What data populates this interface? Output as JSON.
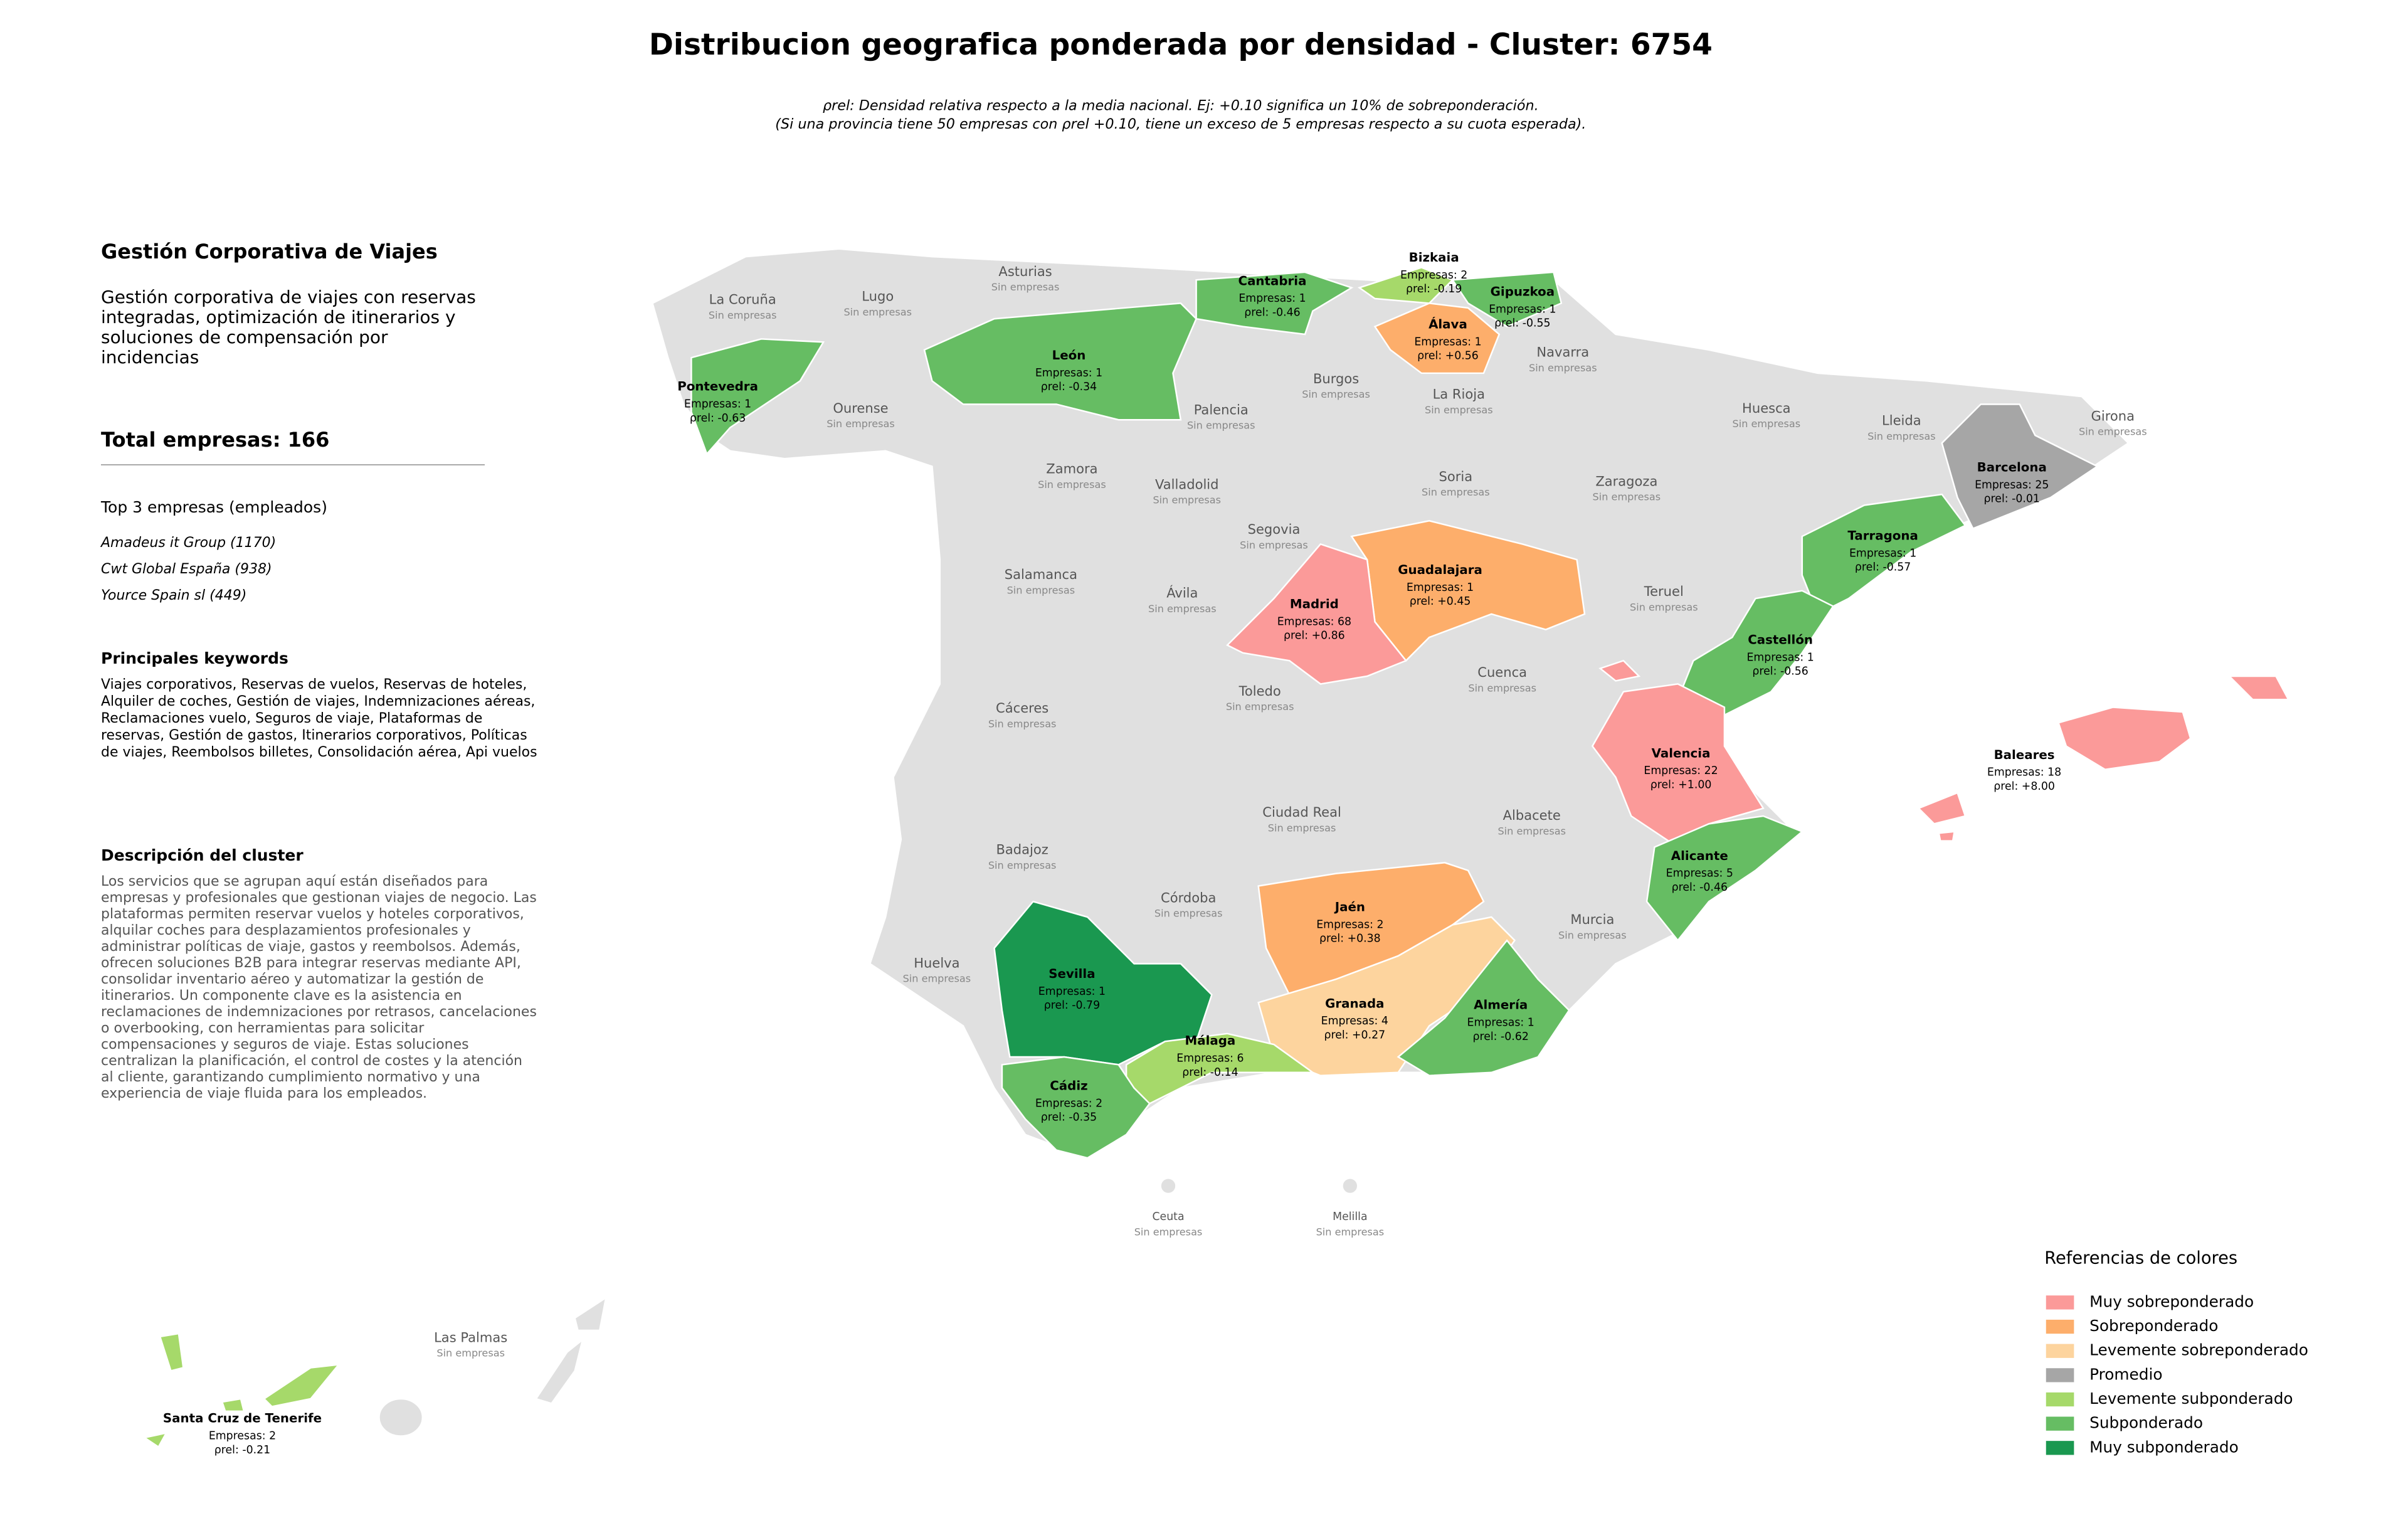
{
  "header": {
    "title": "Distribucion geografica ponderada por densidad - Cluster: 6754",
    "subtitle_lines": [
      "ρrel: Densidad relativa respecto a la media nacional. Ej: +0.10 significa un 10% de sobreponderación.",
      "(Si una provincia tiene 50 empresas con ρrel +0.10, tiene un exceso de 5 empresas respecto a su cuota esperada)."
    ]
  },
  "panel": {
    "heading": "Gestión Corporativa de Viajes",
    "description": "Gestión corporativa de viajes con reservas integradas, optimización de itinerarios y soluciones de compensación por incidencias",
    "total": "Total empresas: 166",
    "top_title": "Top 3 empresas (empleados)",
    "top_companies": [
      "Amadeus it Group (1170)",
      "Cwt Global España (938)",
      "Yource Spain sl (449)"
    ],
    "keywords_title": "Principales keywords",
    "keywords": "Viajes corporativos, Reservas de vuelos, Reservas de hoteles, Alquiler de coches, Gestión de viajes, Indemnizaciones aéreas, Reclamaciones vuelo, Seguros de viaje, Plataformas de reservas, Gestión de gastos, Itinerarios corporativos, Políticas de viajes, Reembolsos billetes, Consolidación aérea, Api vuelos",
    "cluster_title": "Descripción del cluster",
    "cluster_text": "Los servicios que se agrupan aquí están diseñados para empresas y profesionales que gestionan viajes de negocio. Las plataformas permiten reservar vuelos y hoteles corporativos, alquilar coches para desplazamientos profesionales y administrar políticas de viaje, gastos y reembolsos. Además, ofrecen soluciones B2B para integrar reservas mediante API, consolidar inventario aéreo y automatizar la gestión de itinerarios. Un componente clave es la asistencia en reclamaciones de indemnizaciones por retrasos, cancelaciones o overbooking, con herramientas para solicitar compensaciones y seguros de viaje. Estas soluciones centralizan la planificación, el control de costes y la atención al cliente, garantizando cumplimiento normativo y una experiencia de viaje fluida para los empleados."
  },
  "map": {
    "provinces": [
      {
        "name": "Pontevedra",
        "stats": "Empresas: 1",
        "rho": "ρrel: -0.63",
        "category": "Subponderado"
      },
      {
        "name": "León",
        "stats": "Empresas: 1",
        "rho": "ρrel: -0.34",
        "category": "Subponderado"
      },
      {
        "name": "Cantabria",
        "stats": "Empresas: 1",
        "rho": "ρrel: -0.46",
        "category": "Subponderado"
      },
      {
        "name": "Bizkaia",
        "stats": "Empresas: 2",
        "rho": "ρrel: -0.19",
        "category": "Levemente subponderado"
      },
      {
        "name": "Gipuzkoa",
        "stats": "Empresas: 1",
        "rho": "ρrel: -0.55",
        "category": "Subponderado"
      },
      {
        "name": "Álava",
        "stats": "Empresas: 1",
        "rho": "ρrel: +0.56",
        "category": "Sobreponderado"
      },
      {
        "name": "Barcelona",
        "stats": "Empresas: 25",
        "rho": "ρrel: -0.01",
        "category": "Promedio"
      },
      {
        "name": "Tarragona",
        "stats": "Empresas: 1",
        "rho": "ρrel: -0.57",
        "category": "Subponderado"
      },
      {
        "name": "Guadalajara",
        "stats": "Empresas: 1",
        "rho": "ρrel: +0.45",
        "category": "Sobreponderado"
      },
      {
        "name": "Madrid",
        "stats": "Empresas: 68",
        "rho": "ρrel: +0.86",
        "category": "Muy sobreponderado"
      },
      {
        "name": "Castellón",
        "stats": "Empresas: 1",
        "rho": "ρrel: -0.56",
        "category": "Subponderado"
      },
      {
        "name": "Valencia",
        "stats": "Empresas: 22",
        "rho": "ρrel: +1.00",
        "category": "Muy sobreponderado"
      },
      {
        "name": "Baleares",
        "stats": "Empresas: 18",
        "rho": "ρrel: +8.00",
        "category": "Muy sobreponderado"
      },
      {
        "name": "Alicante",
        "stats": "Empresas: 5",
        "rho": "ρrel: -0.46",
        "category": "Subponderado"
      },
      {
        "name": "Jaén",
        "stats": "Empresas: 2",
        "rho": "ρrel: +0.38",
        "category": "Sobreponderado"
      },
      {
        "name": "Sevilla",
        "stats": "Empresas: 1",
        "rho": "ρrel: -0.79",
        "category": "Muy subponderado"
      },
      {
        "name": "Granada",
        "stats": "Empresas: 4",
        "rho": "ρrel: +0.27",
        "category": "Levemente sobreponderado"
      },
      {
        "name": "Almería",
        "stats": "Empresas: 1",
        "rho": "ρrel: -0.62",
        "category": "Subponderado"
      },
      {
        "name": "Málaga",
        "stats": "Empresas: 6",
        "rho": "ρrel: -0.14",
        "category": "Levemente subponderado"
      },
      {
        "name": "Cádiz",
        "stats": "Empresas: 2",
        "rho": "ρrel: -0.35",
        "category": "Subponderado"
      },
      {
        "name": "Santa Cruz de Tenerife",
        "stats": "Empresas: 2",
        "rho": "ρrel: -0.21",
        "category": "Levemente subponderado"
      }
    ],
    "empty_provinces": [
      {
        "name": "La Coruña",
        "note": "Sin empresas"
      },
      {
        "name": "Lugo",
        "note": "Sin empresas"
      },
      {
        "name": "Asturias",
        "note": "Sin empresas"
      },
      {
        "name": "Ourense",
        "note": "Sin empresas"
      },
      {
        "name": "Palencia",
        "note": "Sin empresas"
      },
      {
        "name": "Burgos",
        "note": "Sin empresas"
      },
      {
        "name": "Navarra",
        "note": "Sin empresas"
      },
      {
        "name": "La Rioja",
        "note": "Sin empresas"
      },
      {
        "name": "Huesca",
        "note": "Sin empresas"
      },
      {
        "name": "Lleida",
        "note": "Sin empresas"
      },
      {
        "name": "Girona",
        "note": "Sin empresas"
      },
      {
        "name": "Zamora",
        "note": "Sin empresas"
      },
      {
        "name": "Valladolid",
        "note": "Sin empresas"
      },
      {
        "name": "Soria",
        "note": "Sin empresas"
      },
      {
        "name": "Zaragoza",
        "note": "Sin empresas"
      },
      {
        "name": "Segovia",
        "note": "Sin empresas"
      },
      {
        "name": "Salamanca",
        "note": "Sin empresas"
      },
      {
        "name": "Ávila",
        "note": "Sin empresas"
      },
      {
        "name": "Teruel",
        "note": "Sin empresas"
      },
      {
        "name": "Cáceres",
        "note": "Sin empresas"
      },
      {
        "name": "Toledo",
        "note": "Sin empresas"
      },
      {
        "name": "Cuenca",
        "note": "Sin empresas"
      },
      {
        "name": "Ciudad Real",
        "note": "Sin empresas"
      },
      {
        "name": "Albacete",
        "note": "Sin empresas"
      },
      {
        "name": "Badajoz",
        "note": "Sin empresas"
      },
      {
        "name": "Córdoba",
        "note": "Sin empresas"
      },
      {
        "name": "Murcia",
        "note": "Sin empresas"
      },
      {
        "name": "Huelva",
        "note": "Sin empresas"
      },
      {
        "name": "Ceuta",
        "note": "Sin empresas"
      },
      {
        "name": "Melilla",
        "note": "Sin empresas"
      },
      {
        "name": "Las Palmas",
        "note": "Sin empresas"
      }
    ]
  },
  "legend": {
    "title": "Referencias de colores",
    "items": [
      {
        "label": "Muy sobreponderado",
        "color": "#fb9a99"
      },
      {
        "label": "Sobreponderado",
        "color": "#fdae6b"
      },
      {
        "label": "Levemente sobreponderado",
        "color": "#fdd49e"
      },
      {
        "label": "Promedio",
        "color": "#a6a6a6"
      },
      {
        "label": "Levemente subponderado",
        "color": "#a6d96a"
      },
      {
        "label": "Subponderado",
        "color": "#66bd63"
      },
      {
        "label": "Muy subponderado",
        "color": "#1a9850"
      }
    ]
  }
}
